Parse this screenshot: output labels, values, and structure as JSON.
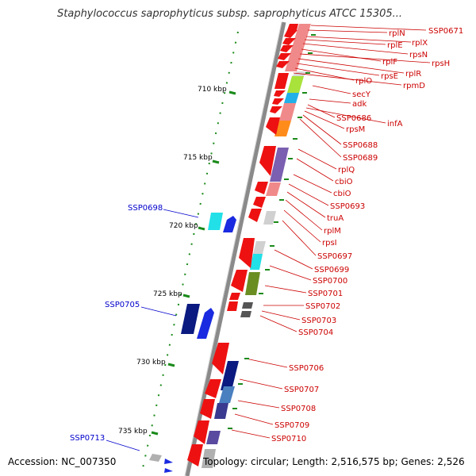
{
  "title": "Staphylococcus saprophyticus subsp. saprophyticus ATCC 15305...",
  "accession": "Accession: NC_007350",
  "topology": "Topology: circular; Length: 2,516,575 bp; Genes: 2,526",
  "colors": {
    "backbone": "#7f7f7f",
    "tick": "#1a8a1a",
    "gene_red": "#ee1111",
    "label_red": "#cc0000",
    "label_blue": "#0000cc"
  },
  "scale_labels": [
    "710 kbp",
    "715 kbp",
    "720 kbp",
    "725 kbp",
    "730 kbp",
    "735 kbp"
  ],
  "right_labels": [
    "SSP0671",
    "rplN",
    "rplX",
    "rplE",
    "rpsN",
    "rplF",
    "rpsH",
    "rplR",
    "rpsE",
    "rplO",
    "rpmD",
    "secY",
    "adk",
    "SSP0686",
    "infA",
    "rpsM",
    "SSP0688",
    "SSP0689",
    "rplQ",
    "cbiO",
    "cbiO",
    "SSP0693",
    "truA",
    "rplM",
    "rpsI",
    "SSP0697",
    "SSP0699",
    "SSP0700",
    "SSP0701",
    "SSP0702",
    "SSP0703",
    "SSP0704",
    "SSP0706",
    "SSP0707",
    "SSP0708",
    "SSP0709",
    "SSP0710"
  ],
  "left_labels": [
    "SSP0698",
    "SSP0705",
    "SSP0713"
  ]
}
